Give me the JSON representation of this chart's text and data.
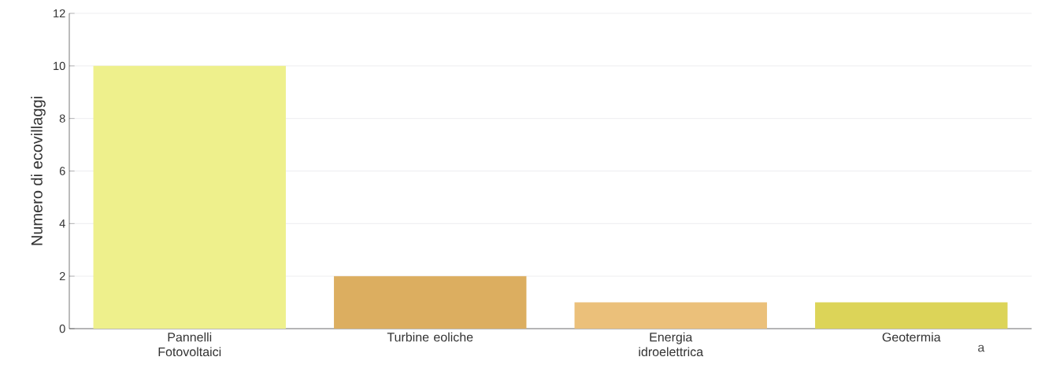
{
  "chart_data": {
    "type": "bar",
    "ylabel": "Numero di ecovillaggi",
    "categories": [
      "Pannelli Fotovoltaici",
      "Turbine eoliche",
      "Energia idroelettrica",
      "Geotermia"
    ],
    "values": [
      10,
      2,
      1,
      1
    ],
    "colors": [
      "#eef08c",
      "#dcae60",
      "#ebc07a",
      "#dcd458"
    ],
    "ylim": [
      0,
      12
    ],
    "yticks": [
      0,
      2,
      4,
      6,
      8,
      10,
      12
    ],
    "grid": "y",
    "annotations": [
      "a"
    ]
  }
}
